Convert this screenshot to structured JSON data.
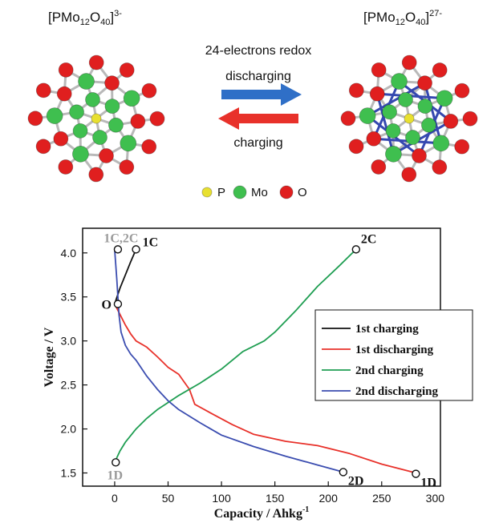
{
  "top_panel": {
    "left_formula": "[PMo",
    "left_sub1": "12",
    "left_mid": "O",
    "left_sub2": "40",
    "left_close": "]",
    "left_charge": "3-",
    "right_formula": "[PMo",
    "right_sub1": "12",
    "right_mid": "O",
    "right_sub2": "40",
    "right_close": "]",
    "right_charge": "27-",
    "redox_label": "24-electrons redox",
    "discharging_label": "discharging",
    "charging_label": "charging",
    "discharge_arrow_color": "#2f6fc7",
    "charge_arrow_color": "#e8312a",
    "legend": [
      {
        "label": "P",
        "color": "#e8e030"
      },
      {
        "label": "Mo",
        "color": "#3fbf4f"
      },
      {
        "label": "O",
        "color": "#e01f1f"
      }
    ]
  },
  "chart_data": {
    "type": "line",
    "title": "",
    "xlabel": "Capacity / Ahkg",
    "xlabel_sup": "-1",
    "ylabel": "Voltage / V",
    "xlim": [
      -30,
      305
    ],
    "ylim": [
      1.35,
      4.28
    ],
    "xticks": [
      0,
      50,
      100,
      150,
      200,
      250,
      300
    ],
    "yticks": [
      1.5,
      2.0,
      2.5,
      3.0,
      3.5,
      4.0
    ],
    "ytick_labels": [
      "1.5",
      "2.0",
      "2.5",
      "3.0",
      "3.5",
      "4.0"
    ],
    "grid": false,
    "legend_position": "right",
    "series": [
      {
        "name": "1st charging",
        "color": "#111111",
        "x": [
          0,
          5,
          10,
          15,
          20
        ],
        "y": [
          3.42,
          3.6,
          3.75,
          3.9,
          4.04
        ]
      },
      {
        "name": "1st discharging",
        "color": "#e8312a",
        "x": [
          0,
          5,
          10,
          15,
          20,
          30,
          40,
          50,
          60,
          70,
          75,
          90,
          110,
          130,
          160,
          190,
          220,
          250,
          282
        ],
        "y": [
          3.42,
          3.3,
          3.18,
          3.08,
          3.0,
          2.93,
          2.82,
          2.7,
          2.62,
          2.45,
          2.28,
          2.18,
          2.05,
          1.94,
          1.86,
          1.81,
          1.72,
          1.6,
          1.5
        ]
      },
      {
        "name": "2nd charging",
        "color": "#1f9e52",
        "x": [
          0,
          5,
          10,
          20,
          30,
          40,
          50,
          60,
          80,
          100,
          120,
          140,
          150,
          170,
          190,
          210,
          226
        ],
        "y": [
          1.62,
          1.75,
          1.85,
          2.0,
          2.12,
          2.22,
          2.3,
          2.38,
          2.52,
          2.68,
          2.88,
          3.0,
          3.1,
          3.35,
          3.62,
          3.85,
          4.04
        ]
      },
      {
        "name": "2nd discharging",
        "color": "#3b4db0",
        "x": [
          0,
          2,
          4,
          6,
          10,
          15,
          20,
          30,
          40,
          50,
          60,
          80,
          100,
          130,
          160,
          190,
          214
        ],
        "y": [
          4.04,
          3.7,
          3.3,
          3.1,
          2.95,
          2.85,
          2.78,
          2.6,
          2.45,
          2.32,
          2.22,
          2.07,
          1.93,
          1.8,
          1.69,
          1.59,
          1.51
        ]
      }
    ],
    "markers": [
      {
        "label": "O",
        "x": 3,
        "y": 3.42,
        "color": "#111111",
        "pos": "left"
      },
      {
        "label": "1C,2C",
        "x": 3,
        "y": 4.04,
        "color": "#9a9a9a",
        "pos": "above-left"
      },
      {
        "label": "1C",
        "x": 20,
        "y": 4.04,
        "color": "#111111",
        "pos": "right"
      },
      {
        "label": "2C",
        "x": 226,
        "y": 4.04,
        "color": "#111111",
        "pos": "above-right"
      },
      {
        "label": "1D",
        "x": 1,
        "y": 1.62,
        "color": "#9a9a9a",
        "pos": "below"
      },
      {
        "label": "2D",
        "x": 214,
        "y": 1.51,
        "color": "#111111",
        "pos": "below-right"
      },
      {
        "label": "1D",
        "x": 282,
        "y": 1.49,
        "color": "#111111",
        "pos": "below-right"
      }
    ]
  }
}
